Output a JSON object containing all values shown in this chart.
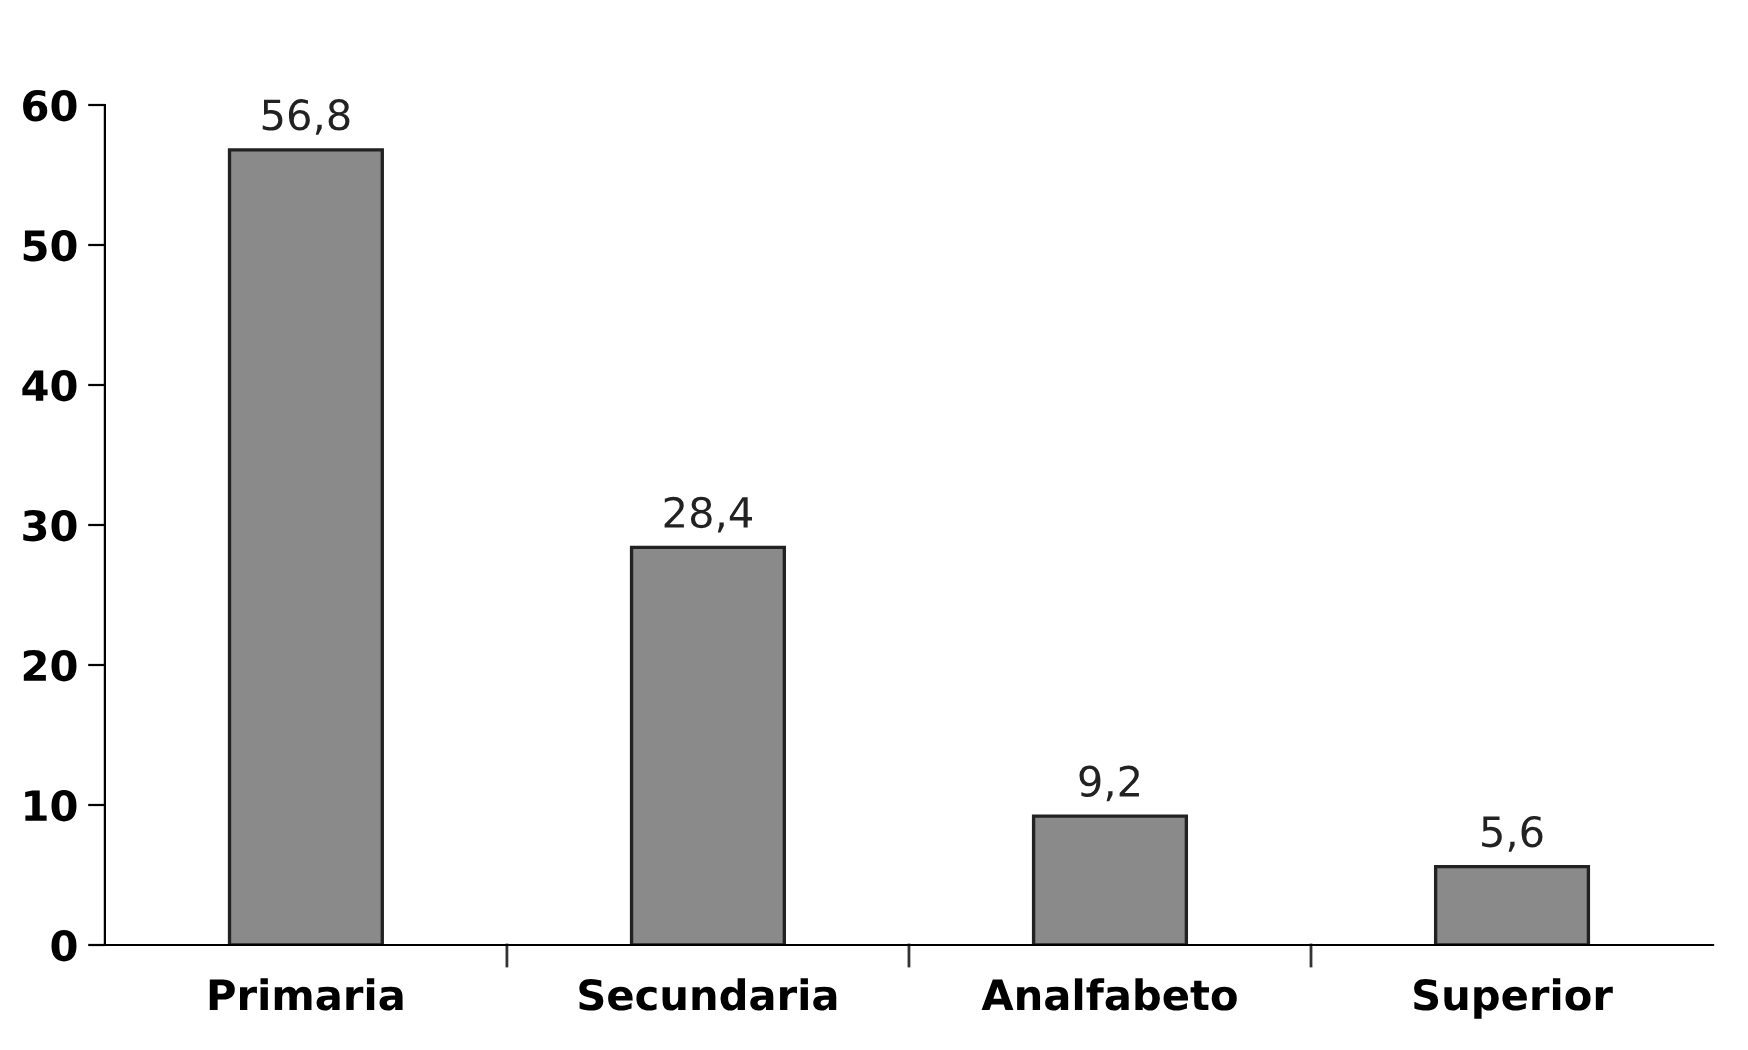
{
  "chart_data": {
    "type": "bar",
    "categories": [
      "Primaria",
      "Secundaria",
      "Analfabeto",
      "Superior"
    ],
    "values": [
      56.8,
      28.4,
      9.2,
      5.6
    ],
    "value_labels": [
      "56,8",
      "28,4",
      "9,2",
      "5,6"
    ],
    "color": "#8a8a8a",
    "ylim": [
      0,
      60
    ],
    "yticks": [
      0,
      10,
      20,
      30,
      40,
      50,
      60
    ],
    "grid": false
  }
}
